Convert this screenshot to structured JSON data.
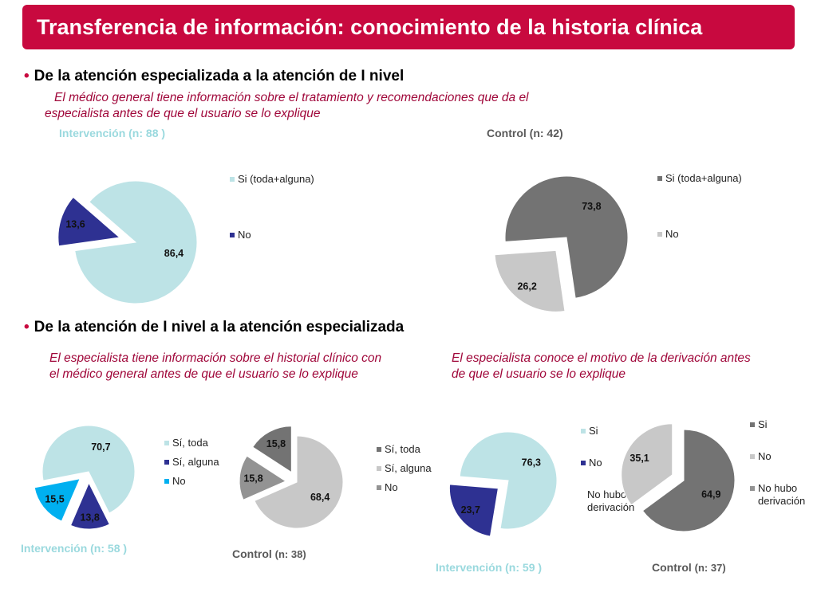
{
  "title": "Transferencia de información: conocimiento de la historia clínica",
  "section1": {
    "bullet": "•",
    "heading": "De la atención especializada a la atención de I nivel",
    "description_line1": "El médico general tiene información sobre el tratamiento y recomendaciones que da el",
    "description_line2": "especialista antes de que el usuario se lo explique"
  },
  "section2": {
    "bullet": "•",
    "heading": "De la atención de I nivel a la atención especializada",
    "left_desc_line1": "El  especialista tiene información sobre el historial clínico con",
    "left_desc_line2": "el médico general antes de que el usuario se lo explique",
    "right_desc_line1": "El  especialista conoce el motivo de la derivación antes",
    "right_desc_line2": "de que el usuario se lo explique"
  },
  "colors": {
    "accent": "#c8093f",
    "light_teal": "#bde3e6",
    "navy": "#2e3192",
    "cyan": "#00b0f0",
    "dark_gray": "#737373",
    "light_gray": "#c8c8c8",
    "mid_gray": "#939393"
  },
  "chart_data": [
    {
      "id": "c1",
      "type": "pie",
      "title": "Intervención",
      "n_label": "(n: 88 )",
      "slices": [
        {
          "label": "Si (toda+alguna)",
          "value": 86.4,
          "value_label": "86,4",
          "color": "#bde3e6"
        },
        {
          "label": "No",
          "value": 13.6,
          "value_label": "13,6",
          "color": "#2e3192",
          "exploded": true
        }
      ]
    },
    {
      "id": "c2",
      "type": "pie",
      "title": "Control",
      "n_label": "(n: 42)",
      "slices": [
        {
          "label": "Si (toda+alguna)",
          "value": 73.8,
          "value_label": "73,8",
          "color": "#737373"
        },
        {
          "label": "No",
          "value": 26.2,
          "value_label": "26,2",
          "color": "#c8c8c8",
          "exploded": true
        }
      ]
    },
    {
      "id": "c3",
      "type": "pie",
      "title": "Intervención",
      "n_label": "(n: 58 )",
      "slices": [
        {
          "label": "Sí, toda",
          "value": 70.7,
          "value_label": "70,7",
          "color": "#bde3e6"
        },
        {
          "label": "Sí, alguna",
          "value": 13.8,
          "value_label": "13,8",
          "color": "#2e3192",
          "exploded": true
        },
        {
          "label": "No",
          "value": 15.5,
          "value_label": "15,5",
          "color": "#00b0f0",
          "exploded": true
        }
      ]
    },
    {
      "id": "c4",
      "type": "pie",
      "title": "Control",
      "n_label": "(n: 38)",
      "slices": [
        {
          "label": "Sí, toda",
          "value": 15.8,
          "value_label": "15,8",
          "color": "#737373",
          "exploded": true
        },
        {
          "label": "Sí, alguna",
          "value": 68.4,
          "value_label": "68,4",
          "color": "#c8c8c8"
        },
        {
          "label": "No",
          "value": 15.8,
          "value_label": "15,8",
          "color": "#939393",
          "exploded": true
        }
      ]
    },
    {
      "id": "c5",
      "type": "pie",
      "title": "Intervención",
      "n_label": "(n: 59 )",
      "legend_extra": "No hubo derivación",
      "slices": [
        {
          "label": "Si",
          "value": 76.3,
          "value_label": "76,3",
          "color": "#bde3e6"
        },
        {
          "label": "No",
          "value": 23.7,
          "value_label": "23,7",
          "color": "#2e3192",
          "exploded": true
        }
      ]
    },
    {
      "id": "c6",
      "type": "pie",
      "title": "Control",
      "n_label": "(n: 37)",
      "legend_extra": "No hubo derivación",
      "slices": [
        {
          "label": "Si",
          "value": 64.9,
          "value_label": "64,9",
          "color": "#737373"
        },
        {
          "label": "No",
          "value": 35.1,
          "value_label": "35,1",
          "color": "#c8c8c8",
          "exploded": true
        }
      ]
    }
  ]
}
